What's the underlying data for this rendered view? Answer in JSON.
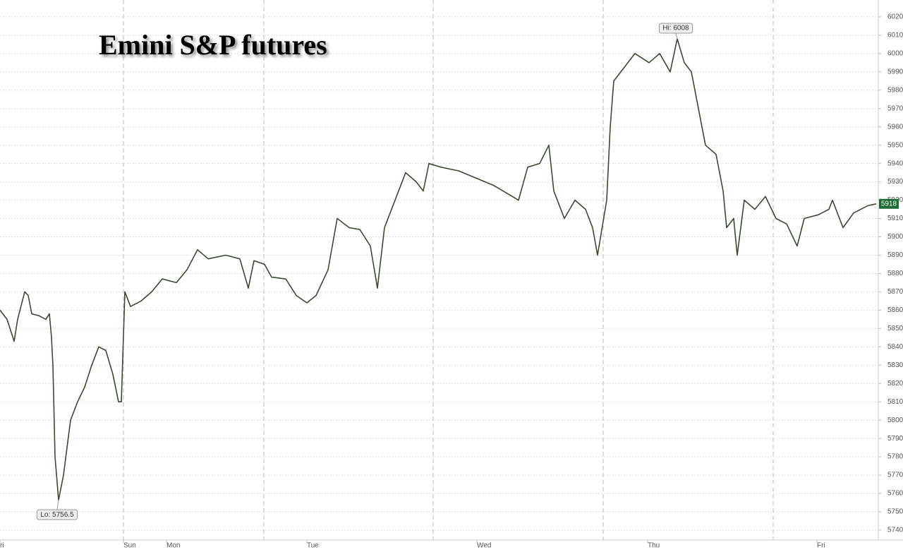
{
  "chart_data": {
    "type": "line",
    "title": "Emini S&P futures",
    "color": "#3b4a2e",
    "x": [
      0,
      10,
      20,
      25,
      35,
      40,
      45,
      55,
      65,
      70,
      73,
      75,
      78,
      83,
      90,
      95,
      100,
      110,
      120,
      130,
      140,
      150,
      160,
      168,
      172,
      177,
      185,
      200,
      215,
      230,
      250,
      265,
      280,
      295,
      320,
      340,
      352,
      360,
      375,
      385,
      405,
      420,
      435,
      448,
      465,
      478,
      495,
      510,
      525,
      535,
      545,
      560,
      575,
      590,
      600,
      608,
      625,
      650,
      675,
      700,
      735,
      748,
      765,
      778,
      785,
      800,
      815,
      830,
      840,
      847,
      860,
      865,
      870,
      880,
      900,
      920,
      935,
      950,
      960,
      970,
      980,
      990,
      1000,
      1015,
      1025,
      1030,
      1040,
      1045,
      1055,
      1070,
      1085,
      1100,
      1115,
      1130,
      1140,
      1160,
      1175,
      1180,
      1195,
      1210,
      1230,
      1242
    ],
    "values": [
      5860,
      5855,
      5843,
      5855,
      5870,
      5868,
      5858,
      5857,
      5855,
      5858,
      5845,
      5830,
      5780,
      5756.5,
      5770,
      5785,
      5800,
      5810,
      5818,
      5830,
      5840,
      5838,
      5825,
      5810,
      5810,
      5870,
      5862,
      5865,
      5870,
      5877,
      5875,
      5882,
      5893,
      5888,
      5890,
      5888,
      5872,
      5887,
      5885,
      5878,
      5877,
      5868,
      5864,
      5868,
      5882,
      5910,
      5905,
      5904,
      5895,
      5872,
      5905,
      5920,
      5935,
      5930,
      5925,
      5940,
      5938,
      5936,
      5932,
      5928,
      5920,
      5938,
      5940,
      5950,
      5925,
      5910,
      5920,
      5915,
      5905,
      5890,
      5920,
      5960,
      5985,
      5990,
      6000,
      5995,
      6000,
      5990,
      6008,
      5995,
      5990,
      5970,
      5950,
      5945,
      5925,
      5905,
      5910,
      5890,
      5920,
      5915,
      5922,
      5910,
      5907,
      5895,
      5910,
      5912,
      5915,
      5920,
      5905,
      5913,
      5917,
      5918
    ],
    "xlim": [
      0,
      1245
    ],
    "xticks": [
      {
        "value": 0,
        "label": "ri"
      },
      {
        "value": 175,
        "label": "Sun"
      },
      {
        "value": 236,
        "label": "Mon"
      },
      {
        "value": 435,
        "label": "Tue"
      },
      {
        "value": 676,
        "label": "Wed"
      },
      {
        "value": 918,
        "label": "Thu"
      },
      {
        "value": 1158,
        "label": "Fri"
      }
    ],
    "session_breaks": [
      175,
      374,
      614,
      855,
      1096
    ],
    "ylim": [
      5734.6,
      6029.2
    ],
    "yticks": [
      5740,
      5750,
      5760,
      5770,
      5780,
      5790,
      5800,
      5810,
      5820,
      5830,
      5840,
      5850,
      5860,
      5870,
      5880,
      5890,
      5900,
      5910,
      5920,
      5930,
      5940,
      5950,
      5960,
      5970,
      5980,
      5990,
      6000,
      6010,
      6020
    ],
    "grid": true,
    "annotations": [
      {
        "text": "Hi: 6008",
        "x": 960,
        "y": 6008
      },
      {
        "text": "Lo: 5756.5",
        "x": 83,
        "y": 5756.5
      }
    ],
    "last_value": 5918
  }
}
